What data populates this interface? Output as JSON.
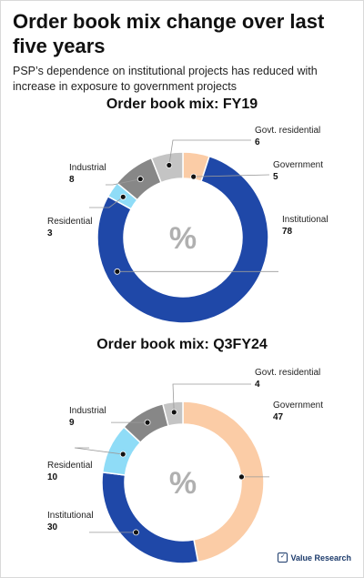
{
  "title": "Order book mix change over last five years",
  "subtitle": "PSP’s dependence on institutional projects has reduced with increase in exposure to government projects",
  "center_symbol": "%",
  "brand": {
    "name": "Value Research",
    "icon": "checkmark-icon"
  },
  "colors": {
    "Government": "#fbcca6",
    "Institutional": "#1f48a8",
    "Residential": "#8fdcf7",
    "Industrial": "#878787",
    "Govt. residential": "#c4c4c4"
  },
  "chart_data": [
    {
      "type": "pie",
      "title": "Order book mix: FY19",
      "unit": "%",
      "categories": [
        "Government",
        "Institutional",
        "Residential",
        "Industrial",
        "Govt. residential"
      ],
      "values": [
        5,
        78,
        3,
        8,
        6
      ]
    },
    {
      "type": "pie",
      "title": "Order book mix: Q3FY24",
      "unit": "%",
      "categories": [
        "Government",
        "Institutional",
        "Residential",
        "Industrial",
        "Govt. residential"
      ],
      "values": [
        47,
        30,
        10,
        9,
        4
      ]
    }
  ]
}
